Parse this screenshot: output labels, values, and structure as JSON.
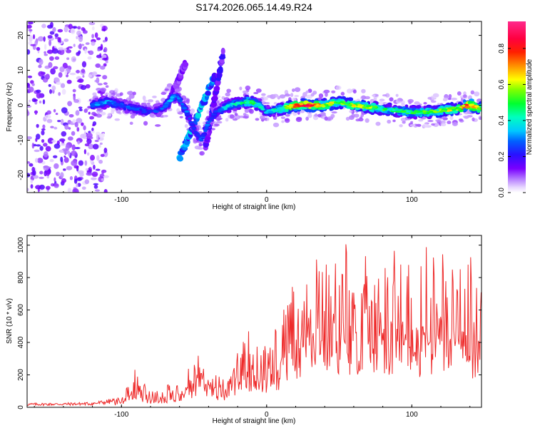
{
  "title": "S174.2026.065.14.49.R24",
  "chart_data": [
    {
      "type": "heatmap",
      "xlabel": "Height of straight line (km)",
      "ylabel": "Frequency (Hz)",
      "xlim": [
        -165,
        148
      ],
      "ylim": [
        -25,
        24
      ],
      "xticks": [
        -100,
        0,
        100
      ],
      "yticks": [
        -20,
        -10,
        0,
        10,
        20
      ],
      "colorbar": {
        "label": "Normalized spectral amplitude",
        "range": [
          0.0,
          0.95
        ],
        "ticks": [
          "0.0",
          "0.2",
          "0.4",
          "0.6",
          "0.8"
        ],
        "tick_values": [
          0.0,
          0.2,
          0.4,
          0.6,
          0.8
        ]
      },
      "ridge": {
        "x": [
          -120,
          -110,
          -100,
          -90,
          -80,
          -72,
          -65,
          -62,
          -55,
          -50,
          -45,
          -40,
          -35,
          -30,
          -25,
          -20,
          -15,
          -10,
          -5,
          0,
          10,
          20,
          30,
          40,
          50,
          60,
          70,
          80,
          90,
          100,
          110,
          120,
          130,
          140,
          148
        ],
        "y": [
          0,
          1,
          0,
          -1,
          -2,
          -1,
          2,
          3,
          -2,
          -7,
          -10,
          -5,
          -2,
          -1,
          0,
          0.5,
          1,
          1,
          0,
          -2,
          -1,
          0,
          0,
          0,
          1,
          0,
          -0.5,
          -1,
          -1.5,
          -2,
          -2,
          -1.5,
          -1,
          0,
          -1
        ],
        "amplitude": [
          0.3,
          0.35,
          0.3,
          0.3,
          0.25,
          0.3,
          0.35,
          0.3,
          0.3,
          0.25,
          0.3,
          0.3,
          0.25,
          0.35,
          0.4,
          0.45,
          0.5,
          0.5,
          0.45,
          0.4,
          0.5,
          0.85,
          0.9,
          0.65,
          0.6,
          0.65,
          0.6,
          0.55,
          0.5,
          0.5,
          0.55,
          0.6,
          0.65,
          0.9,
          0.6
        ]
      },
      "streaks": [
        {
          "x": [
            -60,
            -36
          ],
          "y": [
            -15,
            8
          ],
          "amplitude": 0.35
        },
        {
          "x": [
            -42,
            -30
          ],
          "y": [
            -12,
            15
          ],
          "amplitude": 0.2
        },
        {
          "x": [
            -68,
            -56
          ],
          "y": [
            0,
            12
          ],
          "amplitude": 0.15
        }
      ]
    },
    {
      "type": "line",
      "xlabel": "Height of straight line (km)",
      "ylabel": "SNR (10 * v/v)",
      "xlim": [
        -165,
        148
      ],
      "ylim": [
        0,
        1060
      ],
      "xticks": [
        -100,
        0,
        100
      ],
      "yticks": [
        0,
        200,
        400,
        600,
        800,
        1000
      ],
      "color": "#ee2a2a",
      "envelope": {
        "x": [
          -165,
          -140,
          -120,
          -100,
          -95,
          -90,
          -85,
          -80,
          -70,
          -60,
          -50,
          -45,
          -40,
          -35,
          -30,
          -25,
          -20,
          -15,
          -10,
          -5,
          0,
          10,
          20,
          30,
          40,
          50,
          60,
          70,
          80,
          90,
          100,
          110,
          120,
          130,
          140,
          148
        ],
        "y": [
          20,
          22,
          25,
          50,
          120,
          200,
          120,
          90,
          100,
          130,
          240,
          300,
          250,
          180,
          150,
          180,
          280,
          340,
          380,
          350,
          300,
          450,
          700,
          780,
          720,
          750,
          800,
          760,
          780,
          800,
          700,
          760,
          820,
          700,
          720,
          600
        ]
      }
    }
  ]
}
